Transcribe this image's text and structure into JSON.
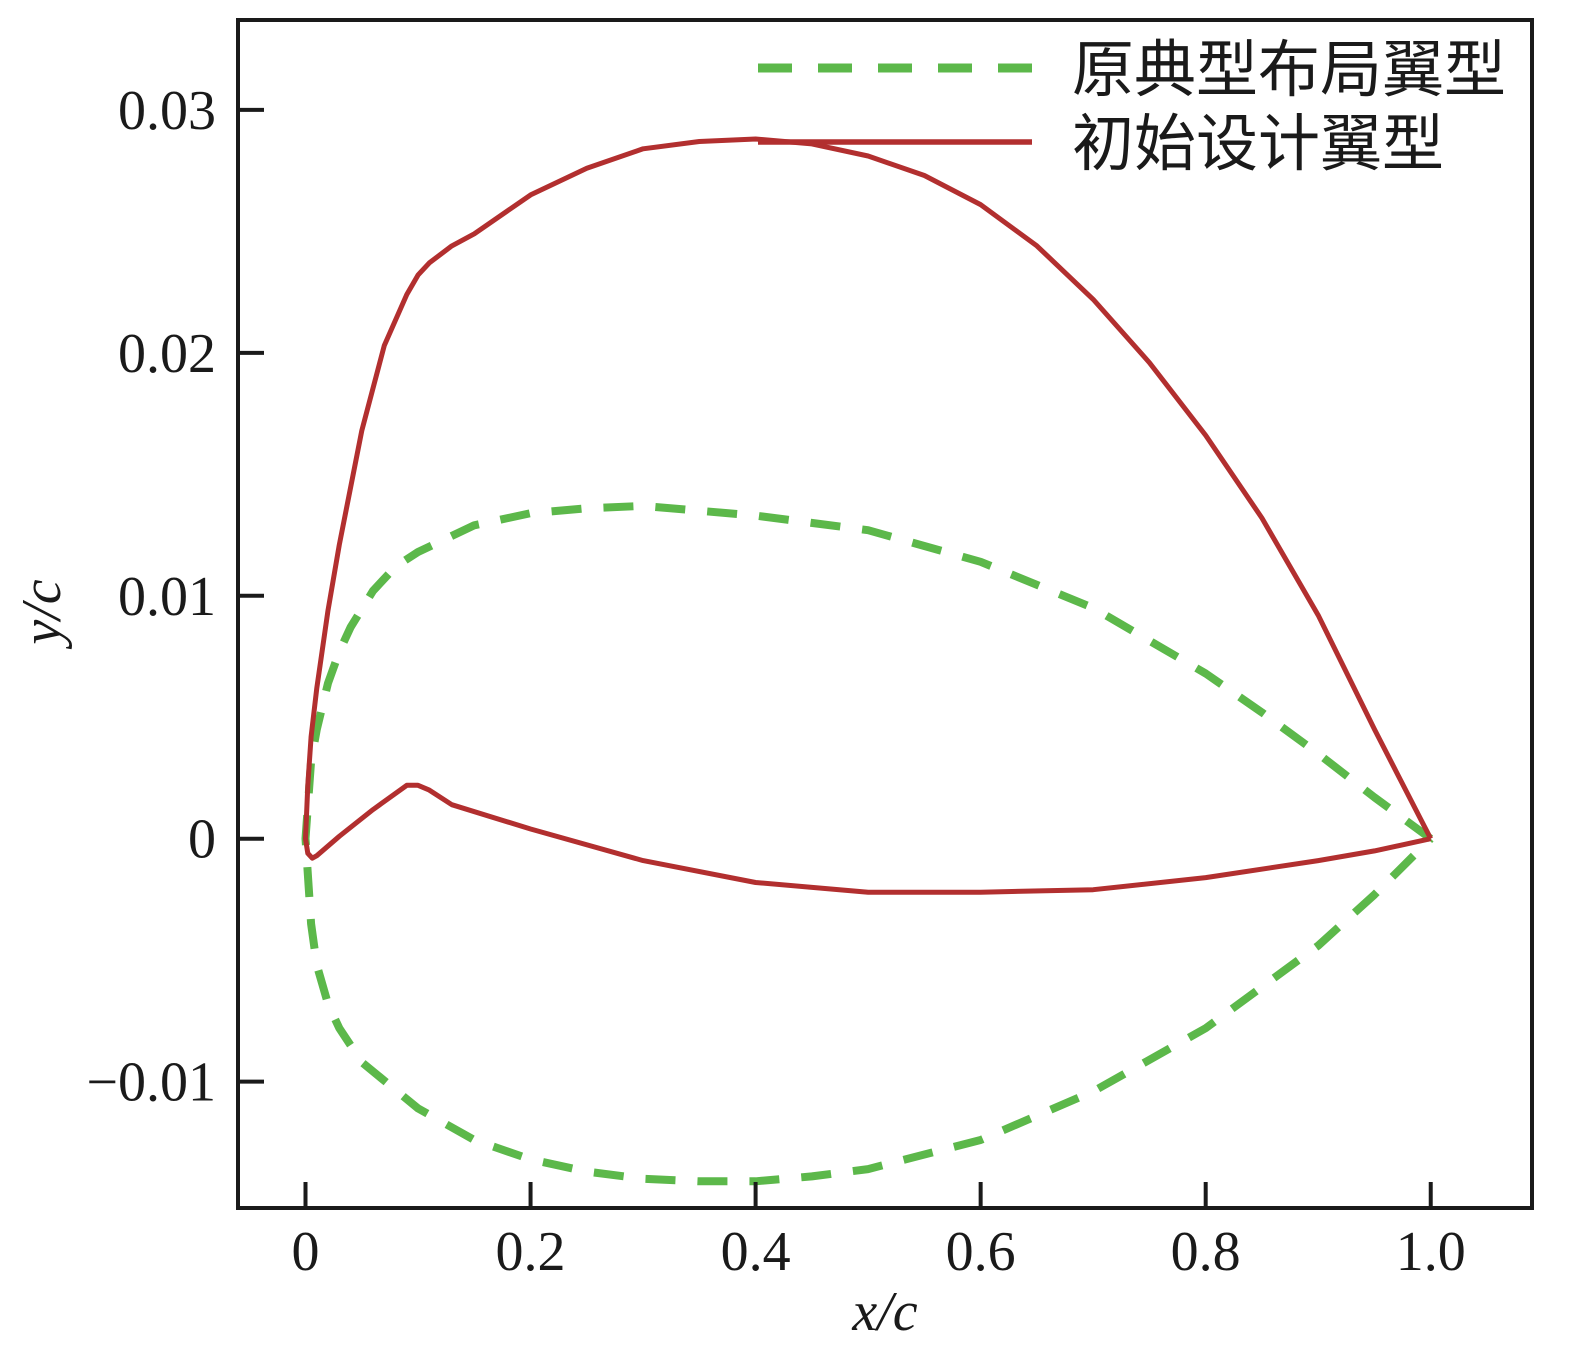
{
  "chart_data": {
    "type": "line",
    "title": "",
    "xlabel": "x/c",
    "ylabel": "y/c",
    "xlim": [
      -0.06,
      1.09
    ],
    "ylim": [
      -0.0152,
      0.0337
    ],
    "x_ticks": [
      0,
      0.2,
      0.4,
      0.6,
      0.8,
      1.0
    ],
    "x_tick_labels": [
      "0",
      "0.2",
      "0.4",
      "0.6",
      "0.8",
      "1.0"
    ],
    "y_ticks": [
      -0.01,
      0,
      0.01,
      0.02,
      0.03
    ],
    "y_tick_labels": [
      "−0.01",
      "0",
      "0.01",
      "0.02",
      "0.03"
    ],
    "grid": false,
    "legend_position": "top-right",
    "series": [
      {
        "name": "原典型布局翼型",
        "color": "#5cb84a",
        "style": "dashed",
        "x": [
          1.0,
          0.95,
          0.9,
          0.85,
          0.8,
          0.7,
          0.6,
          0.5,
          0.4,
          0.3,
          0.25,
          0.2,
          0.15,
          0.1,
          0.08,
          0.06,
          0.04,
          0.03,
          0.02,
          0.01,
          0.005,
          0.0,
          0.005,
          0.01,
          0.02,
          0.03,
          0.05,
          0.1,
          0.15,
          0.2,
          0.25,
          0.3,
          0.35,
          0.4,
          0.45,
          0.5,
          0.6,
          0.7,
          0.8,
          0.9,
          0.95,
          1.0
        ],
        "y": [
          0.0,
          0.0017,
          0.0035,
          0.0052,
          0.0068,
          0.0095,
          0.0114,
          0.0127,
          0.0133,
          0.0137,
          0.0136,
          0.0134,
          0.0129,
          0.0118,
          0.0112,
          0.0102,
          0.0087,
          0.0077,
          0.0064,
          0.0045,
          0.0032,
          0.0,
          -0.0035,
          -0.0052,
          -0.0068,
          -0.0078,
          -0.0092,
          -0.0111,
          -0.0124,
          -0.0132,
          -0.0137,
          -0.014,
          -0.0141,
          -0.0141,
          -0.0139,
          -0.0136,
          -0.0124,
          -0.0104,
          -0.0078,
          -0.0044,
          -0.0023,
          0.0
        ],
        "x_gap_note": ""
      },
      {
        "name": "初始设计翼型",
        "color": "#b22f2f",
        "style": "solid",
        "x": [
          1.0,
          0.95,
          0.9,
          0.85,
          0.8,
          0.75,
          0.7,
          0.65,
          0.6,
          0.55,
          0.5,
          0.45,
          0.4,
          0.35,
          0.3,
          0.25,
          0.2,
          0.15,
          0.13,
          0.11,
          0.1,
          0.09,
          0.07,
          0.05,
          0.03,
          0.02,
          0.01,
          0.005,
          0.002,
          0.0,
          0.002,
          0.006,
          0.01,
          0.03,
          0.06,
          0.09,
          0.1,
          0.11,
          0.13,
          0.2,
          0.3,
          0.4,
          0.5,
          0.6,
          0.7,
          0.8,
          0.9,
          0.95,
          1.0
        ],
        "y": [
          0.0,
          0.0045,
          0.0092,
          0.0132,
          0.0166,
          0.0196,
          0.0222,
          0.0244,
          0.0261,
          0.0273,
          0.0281,
          0.0286,
          0.0288,
          0.0287,
          0.0284,
          0.0276,
          0.0265,
          0.0249,
          0.0244,
          0.0237,
          0.0232,
          0.0224,
          0.0203,
          0.0168,
          0.0121,
          0.0094,
          0.0062,
          0.0042,
          0.0022,
          0.0,
          -0.0006,
          -0.0008,
          -0.0007,
          0.0001,
          0.0012,
          0.0022,
          0.0022,
          0.002,
          0.0014,
          0.0004,
          -0.0009,
          -0.0018,
          -0.0022,
          -0.0022,
          -0.0021,
          -0.0016,
          -0.0009,
          -0.0005,
          0.0
        ]
      }
    ]
  }
}
